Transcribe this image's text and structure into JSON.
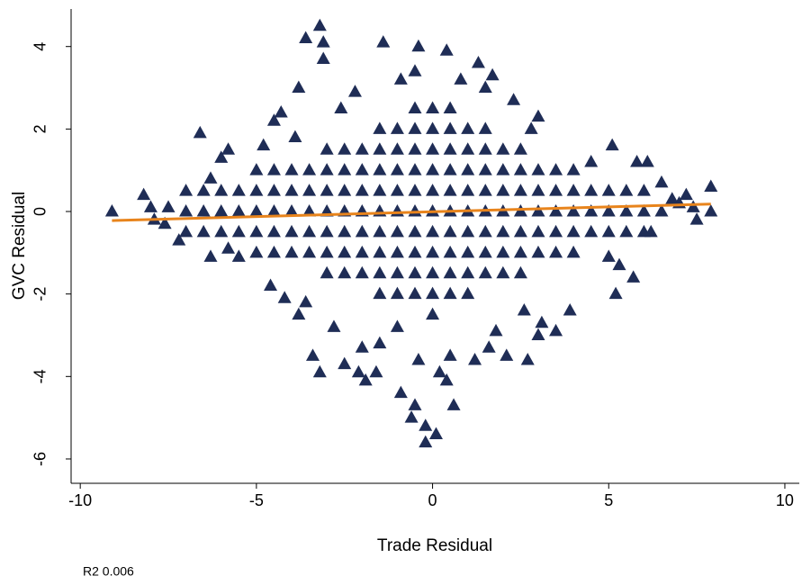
{
  "chart_data": {
    "type": "scatter",
    "x_label": "Trade Residual",
    "y_label": "GVC Residual",
    "note": "R2 0.006",
    "xlim": [
      -10.26,
      10.41
    ],
    "ylim": [
      -6.59,
      4.91
    ],
    "xticks": [
      -10,
      -5,
      0,
      5,
      10
    ],
    "yticks": [
      -6,
      -4,
      -2,
      0,
      2,
      4
    ],
    "grid": false,
    "series": [
      {
        "type": "scatter",
        "marker": "triangle",
        "color": "#1f2d56",
        "x": [
          -7,
          -7,
          -7,
          -6.5,
          -6.5,
          -6.5,
          -6,
          -6,
          -6,
          -5.5,
          -5.5,
          -5.5,
          -5,
          -5,
          -5,
          -5,
          -5,
          -4.5,
          -4.5,
          -4.5,
          -4.5,
          -4.5,
          -4,
          -4,
          -4,
          -4,
          -4,
          -3.5,
          -3.5,
          -3.5,
          -3.5,
          -3.5,
          -3,
          -3,
          -3,
          -3,
          -3,
          -3,
          -3,
          -2.5,
          -2.5,
          -2.5,
          -2.5,
          -2.5,
          -2.5,
          -2.5,
          -2,
          -2,
          -2,
          -2,
          -2,
          -2,
          -2,
          -1.5,
          -1.5,
          -1.5,
          -1.5,
          -1.5,
          -1.5,
          -1.5,
          -1.5,
          -1.5,
          -1,
          -1,
          -1,
          -1,
          -1,
          -1,
          -1,
          -1,
          -1,
          -0.5,
          -0.5,
          -0.5,
          -0.5,
          -0.5,
          -0.5,
          -0.5,
          -0.5,
          -0.5,
          -0.5,
          0,
          0,
          0,
          0,
          0,
          0,
          0,
          0,
          0,
          0,
          0,
          0.5,
          0.5,
          0.5,
          0.5,
          0.5,
          0.5,
          0.5,
          0.5,
          0.5,
          0.5,
          1,
          1,
          1,
          1,
          1,
          1,
          1,
          1,
          1,
          1.5,
          1.5,
          1.5,
          1.5,
          1.5,
          1.5,
          1.5,
          1.5,
          2,
          2,
          2,
          2,
          2,
          2,
          2,
          2.5,
          2.5,
          2.5,
          2.5,
          2.5,
          2.5,
          2.5,
          3,
          3,
          3,
          3,
          3,
          3.5,
          3.5,
          3.5,
          3.5,
          3.5,
          4,
          4,
          4,
          4,
          4,
          4.5,
          4.5,
          4.5,
          5,
          5,
          5,
          5.5,
          5.5,
          5.5,
          6,
          6,
          6,
          6.5,
          -9.1,
          -8.2,
          -7.9,
          -7.5,
          -7.2,
          -6.6,
          -6.3,
          -6.3,
          -5.8,
          -5.5,
          -6,
          -4.5,
          -4.3,
          -4.8,
          -3.9,
          -4.6,
          -4.2,
          -3.8,
          -3.6,
          -3.2,
          -3.1,
          -3.1,
          -1.4,
          -0.4,
          0.4,
          1.3,
          1.7,
          2.3,
          3,
          3.5,
          3.1,
          5.1,
          4.5,
          5,
          5.2,
          5.7,
          2.7,
          3.9,
          3,
          5.3,
          5.8,
          6.1,
          6.5,
          7,
          7.2,
          7.4,
          7.5,
          7.9,
          7.9,
          -3.4,
          -3.2,
          -2.5,
          -2.1,
          -1.9,
          -1.6,
          -0.9,
          -0.5,
          -0.6,
          -0.2,
          -0.2,
          0.1,
          0.6,
          0.4,
          -2,
          -2.8,
          -3.8,
          -3.6,
          -1.5,
          1.2,
          1.6,
          2.1,
          1.8,
          0.5,
          -0.4,
          0.2,
          -1,
          2.6,
          -0.9,
          -0.5,
          0.8,
          1.5,
          -2.2,
          -2.6,
          2.8,
          -5.8,
          6.2,
          6.8,
          -8,
          -7.6
        ],
        "values": [
          -0.5,
          0,
          0.5,
          -0.5,
          0,
          0.5,
          -0.5,
          0,
          0.5,
          -0.5,
          0,
          0.5,
          -1,
          -0.5,
          0,
          0.5,
          1,
          -1,
          -0.5,
          0,
          0.5,
          1,
          -1,
          -0.5,
          0,
          0.5,
          1,
          -1,
          -0.5,
          0,
          0.5,
          1,
          -1.5,
          -1,
          -0.5,
          0,
          0.5,
          1,
          1.5,
          -1.5,
          -1,
          -0.5,
          0,
          0.5,
          1,
          1.5,
          -1.5,
          -1,
          -0.5,
          0,
          0.5,
          1,
          1.5,
          -2,
          -1.5,
          -1,
          -0.5,
          0,
          0.5,
          1,
          1.5,
          2,
          -2,
          -1.5,
          -1,
          -0.5,
          0,
          0.5,
          1,
          1.5,
          2,
          -2,
          -1.5,
          -1,
          -0.5,
          0,
          0.5,
          1,
          1.5,
          2,
          2.5,
          -2.5,
          -2,
          -1.5,
          -1,
          -0.5,
          0,
          0.5,
          1,
          1.5,
          2,
          2.5,
          -2,
          -1.5,
          -1,
          -0.5,
          0,
          0.5,
          1,
          1.5,
          2,
          2.5,
          -2,
          -1.5,
          -1,
          -0.5,
          0,
          0.5,
          1,
          1.5,
          2,
          -1.5,
          -1,
          -0.5,
          0,
          0.5,
          1,
          1.5,
          2,
          -1.5,
          -1,
          -0.5,
          0,
          0.5,
          1,
          1.5,
          -1.5,
          -1,
          -0.5,
          0,
          0.5,
          1,
          1.5,
          -1,
          -0.5,
          0,
          0.5,
          1,
          -1,
          -0.5,
          0,
          0.5,
          1,
          -1,
          -0.5,
          0,
          0.5,
          1,
          -0.5,
          0,
          0.5,
          -0.5,
          0,
          0.5,
          -0.5,
          0,
          0.5,
          -0.5,
          0,
          0.5,
          0,
          0,
          0.4,
          -0.2,
          0.1,
          -0.7,
          1.9,
          -1.1,
          0.8,
          1.5,
          -1.1,
          1.3,
          2.2,
          2.4,
          1.6,
          1.8,
          -1.8,
          -2.1,
          3,
          4.2,
          4.5,
          4.1,
          3.7,
          4.1,
          4,
          3.9,
          3.6,
          3.3,
          2.7,
          2.3,
          -2.9,
          -2.7,
          1.6,
          1.2,
          -1.1,
          -2,
          -1.6,
          -3.6,
          -2.4,
          -3,
          -1.3,
          1.2,
          1.2,
          0.7,
          0.2,
          0.4,
          0.1,
          -0.2,
          0.6,
          0,
          -3.5,
          -3.9,
          -3.7,
          -3.9,
          -4.1,
          -3.9,
          -4.4,
          -4.7,
          -5,
          -5.2,
          -5.6,
          -5.4,
          -4.7,
          -4.1,
          -3.3,
          -2.8,
          -2.5,
          -2.2,
          -3.2,
          -3.6,
          -3.3,
          -3.5,
          -2.9,
          -3.5,
          -3.6,
          -3.9,
          -2.8,
          -2.4,
          3.2,
          3.4,
          3.2,
          3,
          2.9,
          2.5,
          2,
          -0.9,
          -0.5,
          0.3,
          0.1,
          -0.3
        ]
      },
      {
        "type": "line",
        "color": "#e8841c",
        "x": [
          -9.1,
          7.9
        ],
        "values": [
          -0.22,
          0.18
        ]
      }
    ]
  }
}
